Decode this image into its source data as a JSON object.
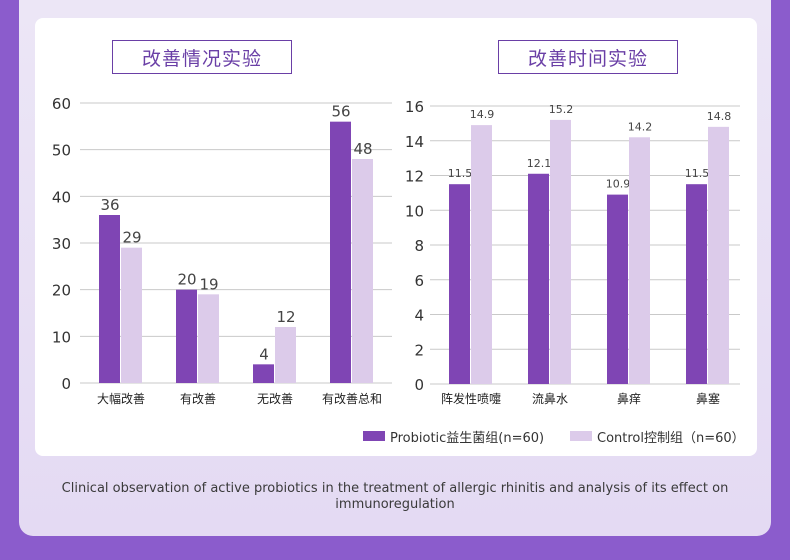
{
  "colors": {
    "probiotic": "#7f45b4",
    "control": "#dccbea",
    "background": "#8b5ccc"
  },
  "chart_data": [
    {
      "type": "bar",
      "title": "改善情况实验",
      "categories": [
        "大幅改善",
        "有改善",
        "无改善",
        "有改善总和"
      ],
      "series": [
        {
          "name": "Probiotic益生菌组(n=60)",
          "values": [
            36,
            20,
            4,
            56
          ]
        },
        {
          "name": "Control控制组（n=60）",
          "values": [
            29,
            19,
            12,
            48
          ]
        }
      ],
      "ylim": [
        0,
        60
      ],
      "yticks": [
        0,
        10,
        20,
        30,
        40,
        50,
        60
      ],
      "grid": true,
      "xlabel": "",
      "ylabel": ""
    },
    {
      "type": "bar",
      "title": "改善时间实验",
      "categories": [
        "阵发性喷嚏",
        "流鼻水",
        "鼻痒",
        "鼻塞"
      ],
      "series": [
        {
          "name": "Probiotic益生菌组(n=60)",
          "values": [
            11.5,
            12.1,
            10.9,
            11.5
          ]
        },
        {
          "name": "Control控制组（n=60）",
          "values": [
            14.9,
            15.2,
            14.2,
            14.8
          ]
        }
      ],
      "ylim": [
        0,
        16
      ],
      "yticks": [
        0,
        2,
        4,
        6,
        8,
        10,
        12,
        14,
        16
      ],
      "grid": true,
      "xlabel": "",
      "ylabel": ""
    }
  ],
  "legend": {
    "probiotic_label": "Probiotic益生菌组(n=60)",
    "control_label": "Control控制组（n=60）",
    "placement": "bottom-right"
  },
  "caption": "Clinical observation of active probiotics in the treatment of allergic rhinitis and analysis of its effect on immunoregulation"
}
